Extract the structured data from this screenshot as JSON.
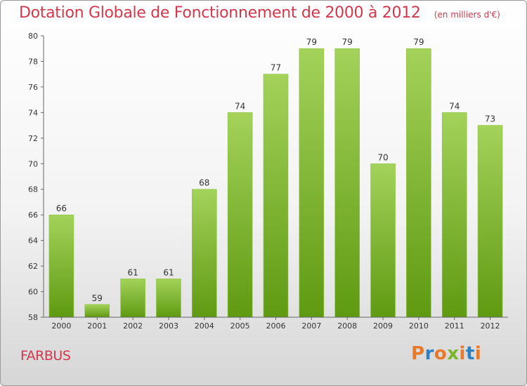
{
  "header": {
    "title": "Dotation Globale de Fonctionnement de 2000 à 2012",
    "subtitle": "(en milliers d'€)"
  },
  "footer": {
    "place": "FARBUS",
    "logo": "Proxiti"
  },
  "colors": {
    "title": "#d2384b",
    "bar_light": "#a4d25a",
    "bar_dark": "#5f9a12",
    "logo_letters": [
      "#e8792b",
      "#2e7fc4",
      "#e8792b",
      "#7bb52a",
      "#e8792b",
      "#2e7fc4",
      "#e8792b"
    ]
  },
  "chart_data": {
    "type": "bar",
    "title": "Dotation Globale de Fonctionnement de 2000 à 2012",
    "subtitle": "(en milliers d'€)",
    "categories": [
      "2000",
      "2001",
      "2002",
      "2003",
      "2004",
      "2005",
      "2006",
      "2007",
      "2008",
      "2009",
      "2010",
      "2011",
      "2012"
    ],
    "values": [
      66,
      59,
      61,
      61,
      68,
      74,
      77,
      79,
      79,
      70,
      79,
      74,
      73
    ],
    "ylim": [
      58,
      80
    ],
    "yticks": [
      58,
      60,
      62,
      64,
      66,
      68,
      70,
      72,
      74,
      76,
      78,
      80
    ],
    "xlabel": "",
    "ylabel": "",
    "grid": false,
    "data_labels": true
  }
}
